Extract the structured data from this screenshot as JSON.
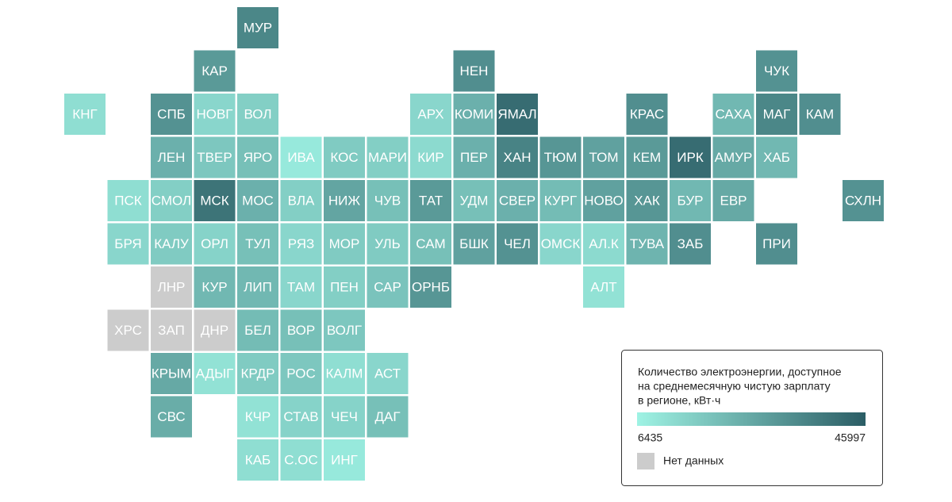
{
  "tiles": [
    {
      "label": "МУР",
      "value": 35000
    },
    {
      "label": "КАР",
      "value": 30000
    },
    {
      "label": "НЕН",
      "value": 33000
    },
    {
      "label": "ЧУК",
      "value": 32000
    },
    {
      "label": "КНГ",
      "value": 12000
    },
    {
      "label": "СПБ",
      "value": 32000
    },
    {
      "label": "НОВГ",
      "value": 14000
    },
    {
      "label": "ВОЛ",
      "value": 16000
    },
    {
      "label": "АРХ",
      "value": 14000
    },
    {
      "label": "КОМИ",
      "value": 24000
    },
    {
      "label": "ЯМАЛ",
      "value": 42000
    },
    {
      "label": "КРАС",
      "value": 33000
    },
    {
      "label": "САХА",
      "value": 22000
    },
    {
      "label": "МАГ",
      "value": 35000
    },
    {
      "label": "КАМ",
      "value": 33000
    },
    {
      "label": "ЛЕН",
      "value": 24000
    },
    {
      "label": "ТВЕР",
      "value": 18000
    },
    {
      "label": "ЯРО",
      "value": 20000
    },
    {
      "label": "ИВА",
      "value": 9000
    },
    {
      "label": "КОС",
      "value": 17000
    },
    {
      "label": "МАРИ",
      "value": 16000
    },
    {
      "label": "КИР",
      "value": 13000
    },
    {
      "label": "ПЕР",
      "value": 24000
    },
    {
      "label": "ХАН",
      "value": 36000
    },
    {
      "label": "ТЮМ",
      "value": 31000
    },
    {
      "label": "ТОМ",
      "value": 28000
    },
    {
      "label": "КЕМ",
      "value": 30000
    },
    {
      "label": "ИРК",
      "value": 42000
    },
    {
      "label": "АМУР",
      "value": 26000
    },
    {
      "label": "ХАБ",
      "value": 22000
    },
    {
      "label": "ПСК",
      "value": 12000
    },
    {
      "label": "СМОЛ",
      "value": 16000
    },
    {
      "label": "МСК",
      "value": 40000
    },
    {
      "label": "МОС",
      "value": 24000
    },
    {
      "label": "ВЛА",
      "value": 16000
    },
    {
      "label": "НИЖ",
      "value": 27000
    },
    {
      "label": "ЧУВ",
      "value": 20000
    },
    {
      "label": "ТАТ",
      "value": 30000
    },
    {
      "label": "УДМ",
      "value": 20000
    },
    {
      "label": "СВЕР",
      "value": 24000
    },
    {
      "label": "КУРГ",
      "value": 21000
    },
    {
      "label": "НОВО",
      "value": 28000
    },
    {
      "label": "ХАК",
      "value": 31000
    },
    {
      "label": "БУР",
      "value": 22000
    },
    {
      "label": "ЕВР",
      "value": 26000
    },
    {
      "label": "СХЛН",
      "value": 32000
    },
    {
      "label": "БРЯ",
      "value": 14000
    },
    {
      "label": "КАЛУ",
      "value": 17000
    },
    {
      "label": "ОРЛ",
      "value": 15000
    },
    {
      "label": "ТУЛ",
      "value": 20000
    },
    {
      "label": "РЯЗ",
      "value": 14000
    },
    {
      "label": "МОР",
      "value": 17000
    },
    {
      "label": "УЛЬ",
      "value": 17000
    },
    {
      "label": "САМ",
      "value": 20000
    },
    {
      "label": "БШК",
      "value": 28000
    },
    {
      "label": "ЧЕЛ",
      "value": 32000
    },
    {
      "label": "ОМСК",
      "value": 14000
    },
    {
      "label": "АЛ.К",
      "value": 13000
    },
    {
      "label": "ТУВА",
      "value": 23000
    },
    {
      "label": "ЗАБ",
      "value": 33000
    },
    {
      "label": "ПРИ",
      "value": 33000
    },
    {
      "label": "ЛНР",
      "value": null
    },
    {
      "label": "КУР",
      "value": 22000
    },
    {
      "label": "ЛИП",
      "value": 22000
    },
    {
      "label": "ТАМ",
      "value": 14000
    },
    {
      "label": "ПЕН",
      "value": 16000
    },
    {
      "label": "САР",
      "value": 19000
    },
    {
      "label": "ОРНБ",
      "value": 31000
    },
    {
      "label": "АЛТ",
      "value": 11000
    },
    {
      "label": "ХРС",
      "value": null
    },
    {
      "label": "ЗАП",
      "value": null
    },
    {
      "label": "ДНР",
      "value": null
    },
    {
      "label": "БЕЛ",
      "value": 21000
    },
    {
      "label": "ВОР",
      "value": 20000
    },
    {
      "label": "ВОЛГ",
      "value": 18000
    },
    {
      "label": "КРЫМ",
      "value": 26000
    },
    {
      "label": "АДЫГ",
      "value": 11000
    },
    {
      "label": "КРДР",
      "value": 17000
    },
    {
      "label": "РОС",
      "value": 18000
    },
    {
      "label": "КАЛМ",
      "value": 12000
    },
    {
      "label": "АСТ",
      "value": 14000
    },
    {
      "label": "СВС",
      "value": 25000
    },
    {
      "label": "КЧР",
      "value": 11000
    },
    {
      "label": "СТАВ",
      "value": 15000
    },
    {
      "label": "ЧЕЧ",
      "value": 15000
    },
    {
      "label": "ДАГ",
      "value": 20000
    },
    {
      "label": "КАБ",
      "value": 12000
    },
    {
      "label": "С.ОС",
      "value": 12000
    },
    {
      "label": "ИНГ",
      "value": 9000
    }
  ],
  "legend": {
    "title_lines": [
      "Количество электроэнергии, доступное",
      "на среднемесячную чистую зарплату",
      "в регионе, кВт·ч"
    ],
    "min": 6435,
    "max": 45997,
    "color_low": "#9ff3e4",
    "color_high": "#2b5d65",
    "no_data_label": "Нет данных",
    "no_data_color": "#cccccc"
  }
}
